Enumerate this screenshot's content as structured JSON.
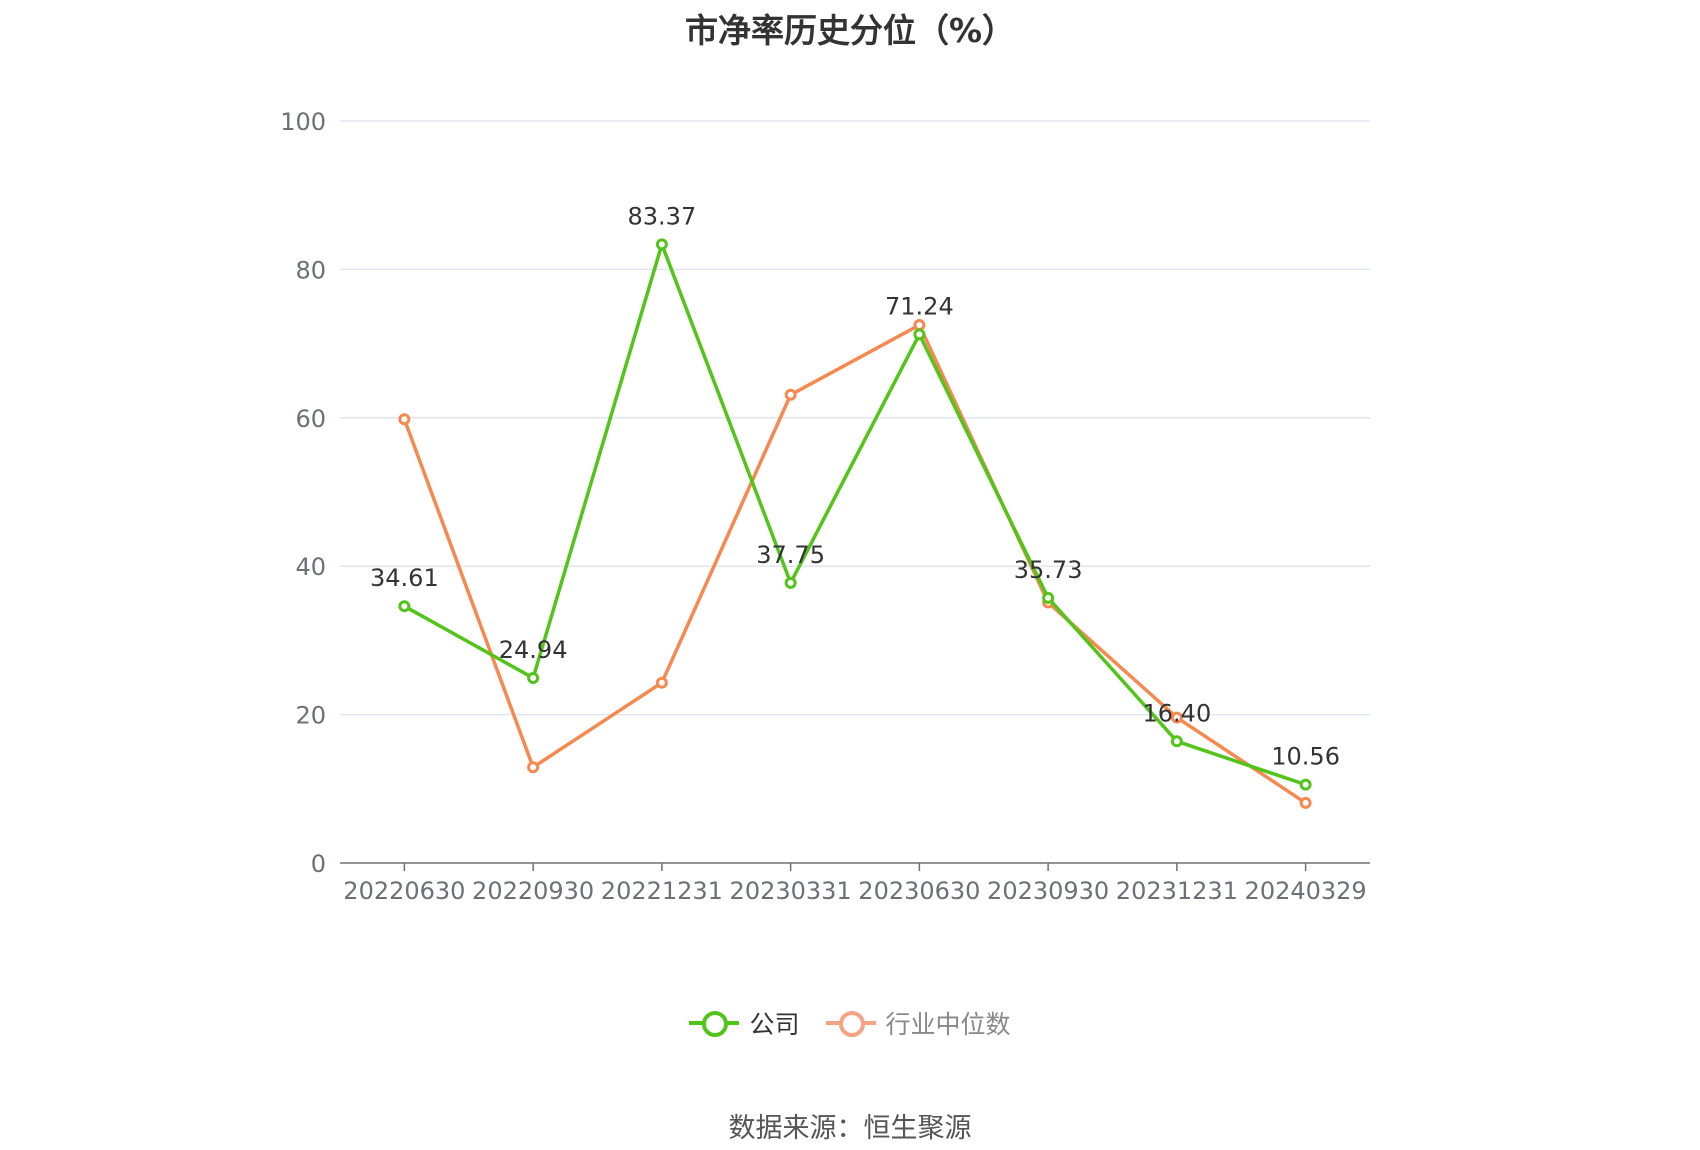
{
  "chart_data": {
    "type": "line",
    "title": "市净率历史分位（%）",
    "categories": [
      "20220630",
      "20220930",
      "20221231",
      "20230331",
      "20230630",
      "20230930",
      "20231231",
      "20240329"
    ],
    "series": [
      {
        "name": "公司",
        "color": "#52c41a",
        "values": [
          34.61,
          24.94,
          83.37,
          37.75,
          71.24,
          35.73,
          16.4,
          10.56
        ],
        "labels": [
          "34.61",
          "24.94",
          "83.37",
          "37.75",
          "71.24",
          "35.73",
          "16.40",
          "10.56"
        ]
      },
      {
        "name": "行业中位数",
        "color": "#f5894f",
        "values": [
          59.8,
          12.9,
          24.3,
          63.1,
          72.5,
          35.1,
          19.6,
          8.1
        ]
      }
    ],
    "yticks": [
      "0",
      "20",
      "40",
      "60",
      "80",
      "100"
    ],
    "ylim": [
      0,
      100
    ],
    "grid": true,
    "legend": "bottom-center"
  },
  "legend": {
    "company_color": "#52c41a",
    "industry_color": "#f5a383",
    "industry_text_color": "#888888"
  },
  "source_text": "数据来源：恒生聚源"
}
